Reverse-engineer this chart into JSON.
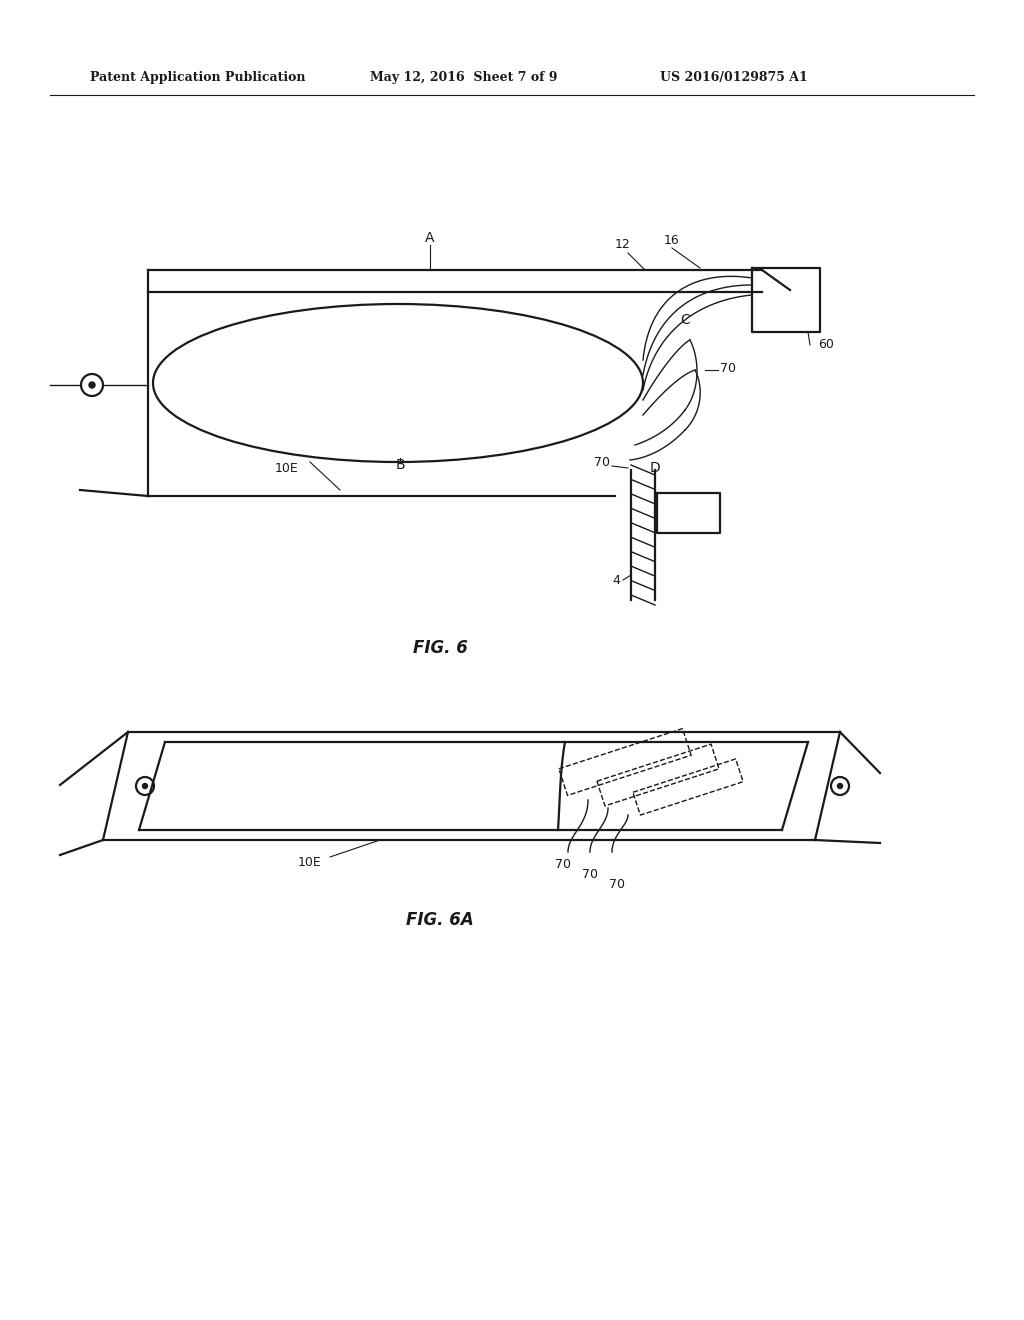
{
  "bg_color": "#ffffff",
  "header_text1": "Patent Application Publication",
  "header_text2": "May 12, 2016  Sheet 7 of 9",
  "header_text3": "US 2016/0129875 A1",
  "fig6_label": "FIG. 6",
  "fig6a_label": "FIG. 6A",
  "line_color": "#1a1a1a",
  "lw_main": 1.6,
  "lw_thin": 1.0,
  "lw_bold": 2.0
}
